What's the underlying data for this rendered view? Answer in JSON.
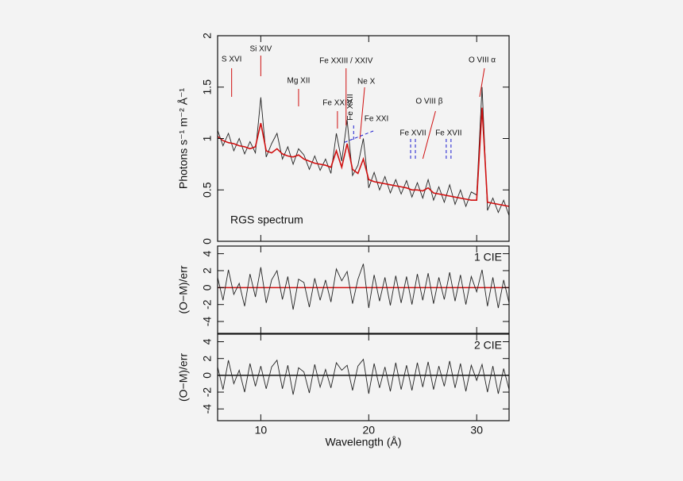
{
  "chart_data": [
    {
      "type": "line",
      "ylabel": "Photons s⁻¹ m⁻² Å⁻¹",
      "inner_label": "RGS spectrum",
      "inner_label_color": "#1a1ad0",
      "xlim": [
        6,
        33
      ],
      "ylim": [
        0,
        2
      ],
      "yticks": [
        0,
        0.5,
        1,
        1.5,
        2
      ],
      "x": [
        6,
        6.5,
        7,
        7.5,
        8,
        8.5,
        9,
        9.5,
        10,
        10.5,
        11,
        11.5,
        12,
        12.5,
        13,
        13.5,
        14,
        14.5,
        15,
        15.5,
        16,
        16.5,
        17,
        17.5,
        18,
        18.5,
        19,
        19.5,
        20,
        20.5,
        21,
        21.5,
        22,
        22.5,
        23,
        23.5,
        24,
        24.5,
        25,
        25.5,
        26,
        26.5,
        27,
        27.5,
        28,
        28.5,
        29,
        29.5,
        30,
        30.5,
        31,
        31.5,
        32,
        32.5,
        33
      ],
      "series": [
        {
          "name": "data",
          "color": "#222222",
          "values": [
            1.08,
            0.93,
            1.05,
            0.88,
            1.0,
            0.85,
            0.97,
            0.86,
            1.4,
            0.82,
            0.95,
            1.05,
            0.8,
            0.92,
            0.75,
            0.9,
            0.84,
            0.7,
            0.83,
            0.69,
            0.8,
            0.66,
            1.05,
            0.78,
            1.18,
            0.64,
            0.74,
            1.0,
            0.52,
            0.67,
            0.5,
            0.63,
            0.47,
            0.6,
            0.46,
            0.59,
            0.43,
            0.57,
            0.42,
            0.6,
            0.4,
            0.53,
            0.38,
            0.55,
            0.36,
            0.5,
            0.34,
            0.48,
            0.45,
            1.5,
            0.3,
            0.42,
            0.28,
            0.4,
            0.25
          ]
        },
        {
          "name": "model",
          "color": "#d01010",
          "values": [
            1.02,
            0.98,
            0.96,
            0.95,
            0.93,
            0.92,
            0.9,
            0.92,
            1.15,
            0.88,
            0.86,
            0.9,
            0.85,
            0.83,
            0.82,
            0.84,
            0.8,
            0.78,
            0.76,
            0.75,
            0.74,
            0.72,
            0.88,
            0.72,
            0.95,
            0.7,
            0.66,
            0.8,
            0.6,
            0.58,
            0.57,
            0.56,
            0.55,
            0.54,
            0.53,
            0.52,
            0.5,
            0.5,
            0.49,
            0.52,
            0.47,
            0.46,
            0.45,
            0.44,
            0.43,
            0.42,
            0.41,
            0.4,
            0.4,
            1.3,
            0.38,
            0.37,
            0.36,
            0.35,
            0.34
          ]
        }
      ],
      "annotations": [
        {
          "text": "S XVI",
          "x": 7.3,
          "color": "#d01010"
        },
        {
          "text": "Si XIV",
          "x": 10,
          "color": "#d01010"
        },
        {
          "text": "Mg XII",
          "x": 13.5,
          "color": "#d01010"
        },
        {
          "text": "Fe XXIV",
          "x": 17.1,
          "color": "#d01010"
        },
        {
          "text": "Fe XXIII / XXIV",
          "x": 17.9,
          "color": "#d01010"
        },
        {
          "text": "Ne X",
          "x": 19.4,
          "color": "#d01010"
        },
        {
          "text": "Fe XXII",
          "x": 18.6,
          "color": "#1a1ad0"
        },
        {
          "text": "Fe XXI",
          "x": 19.1,
          "color": "#1a1ad0"
        },
        {
          "text": "Fe XVII",
          "x": 24.1,
          "color": "#1a1ad0"
        },
        {
          "text": "O VIII β",
          "x": 25.6,
          "color": "#d01010"
        },
        {
          "text": "Fe XVII",
          "x": 27.4,
          "color": "#1a1ad0"
        },
        {
          "text": "O VIII α",
          "x": 30.5,
          "color": "#d01010"
        }
      ]
    },
    {
      "type": "line",
      "ylabel": "(O−M)/err",
      "inner_label": "1 CIE",
      "inner_label_color": "#d01010",
      "xlim": [
        6,
        33
      ],
      "ylim": [
        -5.4,
        4.9
      ],
      "yticks": [
        -4,
        -2,
        0,
        2,
        4
      ],
      "reference_line": {
        "y": 0,
        "color": "#d01010"
      },
      "series": [
        {
          "name": "residuals",
          "color": "#222222",
          "values": [
            1.2,
            -1.5,
            2.1,
            -0.8,
            0.5,
            -2.2,
            1.6,
            -1.1,
            2.4,
            -1.8,
            0.9,
            2.0,
            -1.4,
            1.3,
            -2.6,
            1.0,
            0.6,
            -2.3,
            1.1,
            -1.5,
            0.9,
            -1.7,
            2.2,
            0.8,
            1.9,
            -1.9,
            1.0,
            2.8,
            -2.4,
            1.5,
            -1.6,
            1.2,
            -2.1,
            1.4,
            -1.8,
            1.3,
            -2.0,
            1.6,
            -1.5,
            1.7,
            -1.9,
            1.2,
            -1.4,
            1.8,
            -1.6,
            1.5,
            -2.0,
            1.3,
            -0.5,
            2.1,
            -2.2,
            1.2,
            -2.4,
            0.9,
            -1.8
          ]
        }
      ]
    },
    {
      "type": "line",
      "ylabel": "(O−M)/err",
      "inner_label": "2 CIE",
      "inner_label_color": "#1a8ad4",
      "xlabel": "Wavelength (Å)",
      "xlim": [
        6,
        33
      ],
      "ylim": [
        -5.4,
        4.9
      ],
      "yticks": [
        -4,
        -2,
        0,
        2,
        4
      ],
      "xticks": [
        10,
        20,
        30
      ],
      "reference_line": {
        "y": 0,
        "color": "#111111"
      },
      "series": [
        {
          "name": "residuals",
          "color": "#222222",
          "values": [
            1.0,
            -1.7,
            1.8,
            -1.0,
            0.6,
            -2.0,
            1.4,
            -1.3,
            1.1,
            -1.6,
            1.0,
            1.8,
            -1.6,
            1.2,
            -2.3,
            0.9,
            0.4,
            -2.1,
            1.3,
            -1.4,
            0.7,
            -1.5,
            1.5,
            0.6,
            1.2,
            -1.8,
            1.1,
            1.9,
            -2.2,
            1.4,
            -1.5,
            1.0,
            -1.9,
            1.5,
            -1.7,
            1.2,
            -1.8,
            1.5,
            -1.4,
            1.6,
            -1.7,
            1.1,
            -1.3,
            1.7,
            -1.5,
            1.4,
            -1.9,
            1.2,
            -0.6,
            1.3,
            -2.0,
            1.1,
            -2.2,
            0.8,
            -1.7
          ]
        }
      ]
    }
  ]
}
